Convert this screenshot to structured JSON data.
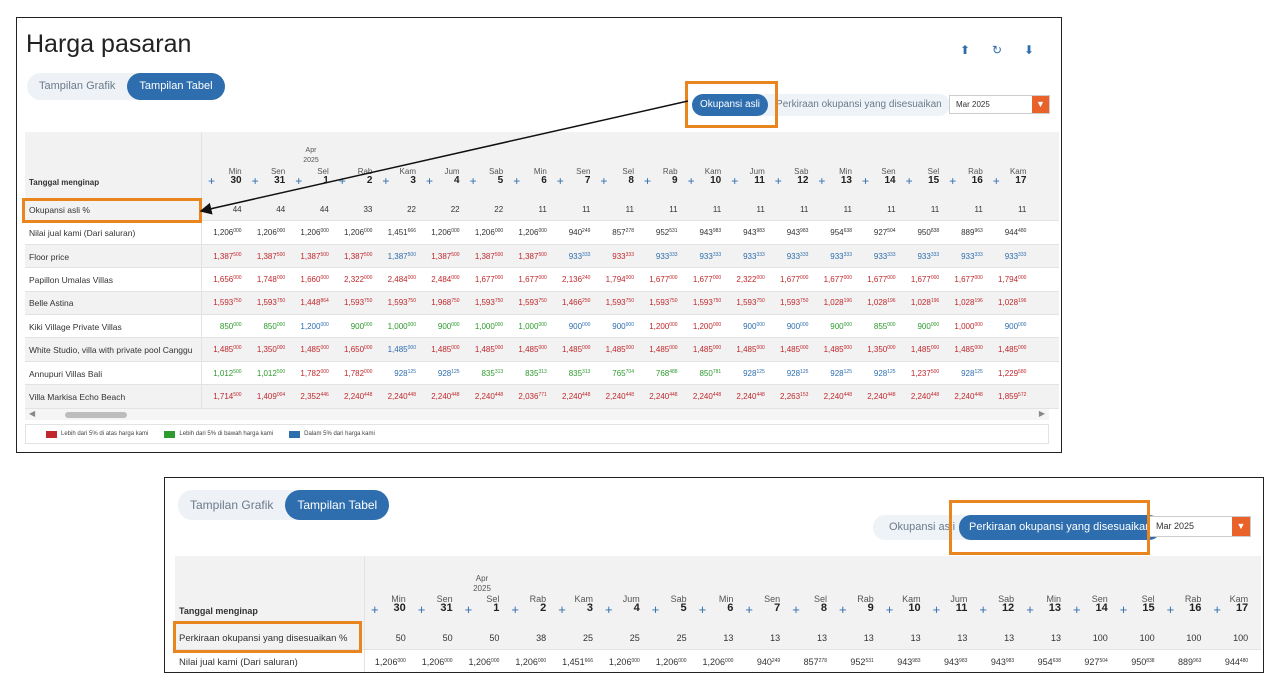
{
  "panel1": {
    "title": "Harga pasaran",
    "view_toggle": [
      "Tampilan Grafik",
      "Tampilan Tabel"
    ],
    "header_icons": [
      "upload-icon",
      "refresh-icon",
      "download-icon"
    ],
    "occupancy_options": [
      "Okupansi asli",
      "Perkiraan okupansi yang disesuaikan"
    ],
    "month": "Mar 2025",
    "row_header": "Tanggal menginap",
    "month_marker": [
      "Apr",
      "2025"
    ],
    "days": [
      [
        "Min",
        "30"
      ],
      [
        "Sen",
        "31"
      ],
      [
        "Sel",
        "1"
      ],
      [
        "Rab",
        "2"
      ],
      [
        "Kam",
        "3"
      ],
      [
        "Jum",
        "4"
      ],
      [
        "Sab",
        "5"
      ],
      [
        "Min",
        "6"
      ],
      [
        "Sen",
        "7"
      ],
      [
        "Sel",
        "8"
      ],
      [
        "Rab",
        "9"
      ],
      [
        "Kam",
        "10"
      ],
      [
        "Jum",
        "11"
      ],
      [
        "Sab",
        "12"
      ],
      [
        "Min",
        "13"
      ],
      [
        "Sen",
        "14"
      ],
      [
        "Sel",
        "15"
      ],
      [
        "Rab",
        "16"
      ],
      [
        "Kam",
        "17"
      ]
    ],
    "rows": [
      {
        "label": "Okupansi asli %",
        "shaded": true,
        "cells": [
          [
            "44",
            "",
            "k"
          ],
          [
            "44",
            "",
            "k"
          ],
          [
            "44",
            "",
            "k"
          ],
          [
            "33",
            "",
            "k"
          ],
          [
            "22",
            "",
            "k"
          ],
          [
            "22",
            "",
            "k"
          ],
          [
            "22",
            "",
            "k"
          ],
          [
            "11",
            "",
            "k"
          ],
          [
            "11",
            "",
            "k"
          ],
          [
            "11",
            "",
            "k"
          ],
          [
            "11",
            "",
            "k"
          ],
          [
            "11",
            "",
            "k"
          ],
          [
            "11",
            "",
            "k"
          ],
          [
            "11",
            "",
            "k"
          ],
          [
            "11",
            "",
            "k"
          ],
          [
            "11",
            "",
            "k"
          ],
          [
            "11",
            "",
            "k"
          ],
          [
            "11",
            "",
            "k"
          ],
          [
            "11",
            "",
            "k"
          ]
        ]
      },
      {
        "label": "Nilai jual kami (Dari saluran)",
        "shaded": false,
        "cells": [
          [
            "1,206",
            "000",
            "k"
          ],
          [
            "1,206",
            "000",
            "k"
          ],
          [
            "1,206",
            "000",
            "k"
          ],
          [
            "1,206",
            "000",
            "k"
          ],
          [
            "1,451",
            "666",
            "k"
          ],
          [
            "1,206",
            "000",
            "k"
          ],
          [
            "1,206",
            "000",
            "k"
          ],
          [
            "1,206",
            "000",
            "k"
          ],
          [
            "940",
            "249",
            "k"
          ],
          [
            "857",
            "278",
            "k"
          ],
          [
            "952",
            "531",
            "k"
          ],
          [
            "943",
            "983",
            "k"
          ],
          [
            "943",
            "983",
            "k"
          ],
          [
            "943",
            "983",
            "k"
          ],
          [
            "954",
            "638",
            "k"
          ],
          [
            "927",
            "504",
            "k"
          ],
          [
            "950",
            "838",
            "k"
          ],
          [
            "889",
            "963",
            "k"
          ],
          [
            "944",
            "480",
            "k"
          ]
        ]
      },
      {
        "label": "Floor price",
        "shaded": true,
        "cells": [
          [
            "1,387",
            "500",
            "r"
          ],
          [
            "1,387",
            "500",
            "r"
          ],
          [
            "1,387",
            "500",
            "r"
          ],
          [
            "1,387",
            "500",
            "r"
          ],
          [
            "1,387",
            "500",
            "b"
          ],
          [
            "1,387",
            "500",
            "r"
          ],
          [
            "1,387",
            "500",
            "r"
          ],
          [
            "1,387",
            "500",
            "r"
          ],
          [
            "933",
            "333",
            "b"
          ],
          [
            "933",
            "333",
            "r"
          ],
          [
            "933",
            "333",
            "b"
          ],
          [
            "933",
            "333",
            "b"
          ],
          [
            "933",
            "333",
            "b"
          ],
          [
            "933",
            "333",
            "b"
          ],
          [
            "933",
            "333",
            "b"
          ],
          [
            "933",
            "333",
            "b"
          ],
          [
            "933",
            "333",
            "b"
          ],
          [
            "933",
            "333",
            "b"
          ],
          [
            "933",
            "333",
            "b"
          ]
        ]
      },
      {
        "label": "Papillon Umalas Villas",
        "shaded": false,
        "cells": [
          [
            "1,656",
            "000",
            "r"
          ],
          [
            "1,748",
            "000",
            "r"
          ],
          [
            "1,660",
            "000",
            "r"
          ],
          [
            "2,322",
            "000",
            "r"
          ],
          [
            "2,484",
            "000",
            "r"
          ],
          [
            "2,484",
            "000",
            "r"
          ],
          [
            "1,677",
            "000",
            "r"
          ],
          [
            "1,677",
            "000",
            "r"
          ],
          [
            "2,136",
            "240",
            "r"
          ],
          [
            "1,794",
            "000",
            "r"
          ],
          [
            "1,677",
            "000",
            "r"
          ],
          [
            "1,677",
            "000",
            "r"
          ],
          [
            "2,322",
            "000",
            "r"
          ],
          [
            "1,677",
            "000",
            "r"
          ],
          [
            "1,677",
            "000",
            "r"
          ],
          [
            "1,677",
            "000",
            "r"
          ],
          [
            "1,677",
            "000",
            "r"
          ],
          [
            "1,677",
            "000",
            "r"
          ],
          [
            "1,794",
            "000",
            "r"
          ]
        ]
      },
      {
        "label": "Belle Astina",
        "shaded": true,
        "cells": [
          [
            "1,593",
            "750",
            "r"
          ],
          [
            "1,593",
            "750",
            "r"
          ],
          [
            "1,448",
            "864",
            "r"
          ],
          [
            "1,593",
            "750",
            "r"
          ],
          [
            "1,593",
            "750",
            "r"
          ],
          [
            "1,968",
            "750",
            "r"
          ],
          [
            "1,593",
            "750",
            "r"
          ],
          [
            "1,593",
            "750",
            "r"
          ],
          [
            "1,466",
            "250",
            "r"
          ],
          [
            "1,593",
            "750",
            "r"
          ],
          [
            "1,593",
            "750",
            "r"
          ],
          [
            "1,593",
            "750",
            "r"
          ],
          [
            "1,593",
            "750",
            "r"
          ],
          [
            "1,593",
            "750",
            "r"
          ],
          [
            "1,028",
            "196",
            "r"
          ],
          [
            "1,028",
            "196",
            "r"
          ],
          [
            "1,028",
            "196",
            "r"
          ],
          [
            "1,028",
            "196",
            "r"
          ],
          [
            "1,028",
            "196",
            "r"
          ]
        ]
      },
      {
        "label": "Kiki Village Private Villas",
        "shaded": false,
        "cells": [
          [
            "850",
            "000",
            "g"
          ],
          [
            "850",
            "000",
            "g"
          ],
          [
            "1,200",
            "000",
            "b"
          ],
          [
            "900",
            "000",
            "g"
          ],
          [
            "1,000",
            "000",
            "g"
          ],
          [
            "900",
            "000",
            "g"
          ],
          [
            "1,000",
            "000",
            "g"
          ],
          [
            "1,000",
            "000",
            "g"
          ],
          [
            "900",
            "000",
            "b"
          ],
          [
            "900",
            "000",
            "b"
          ],
          [
            "1,200",
            "000",
            "r"
          ],
          [
            "1,200",
            "000",
            "r"
          ],
          [
            "900",
            "000",
            "b"
          ],
          [
            "900",
            "000",
            "b"
          ],
          [
            "900",
            "000",
            "g"
          ],
          [
            "855",
            "000",
            "g"
          ],
          [
            "900",
            "000",
            "g"
          ],
          [
            "1,000",
            "000",
            "r"
          ],
          [
            "900",
            "000",
            "b"
          ]
        ]
      },
      {
        "label": "White Studio, villa with private pool Canggu",
        "shaded": true,
        "cells": [
          [
            "1,485",
            "000",
            "r"
          ],
          [
            "1,350",
            "000",
            "r"
          ],
          [
            "1,485",
            "000",
            "r"
          ],
          [
            "1,650",
            "000",
            "r"
          ],
          [
            "1,485",
            "000",
            "b"
          ],
          [
            "1,485",
            "000",
            "r"
          ],
          [
            "1,485",
            "000",
            "r"
          ],
          [
            "1,485",
            "000",
            "r"
          ],
          [
            "1,485",
            "000",
            "r"
          ],
          [
            "1,485",
            "000",
            "r"
          ],
          [
            "1,485",
            "000",
            "r"
          ],
          [
            "1,485",
            "000",
            "r"
          ],
          [
            "1,485",
            "000",
            "r"
          ],
          [
            "1,485",
            "000",
            "r"
          ],
          [
            "1,485",
            "000",
            "r"
          ],
          [
            "1,350",
            "000",
            "r"
          ],
          [
            "1,485",
            "000",
            "r"
          ],
          [
            "1,485",
            "000",
            "r"
          ],
          [
            "1,485",
            "000",
            "r"
          ]
        ]
      },
      {
        "label": "Annupuri Villas Bali",
        "shaded": false,
        "cells": [
          [
            "1,012",
            "500",
            "g"
          ],
          [
            "1,012",
            "500",
            "g"
          ],
          [
            "1,782",
            "000",
            "r"
          ],
          [
            "1,782",
            "000",
            "r"
          ],
          [
            "928",
            "125",
            "b"
          ],
          [
            "928",
            "125",
            "b"
          ],
          [
            "835",
            "313",
            "g"
          ],
          [
            "835",
            "313",
            "g"
          ],
          [
            "835",
            "313",
            "g"
          ],
          [
            "765",
            "704",
            "g"
          ],
          [
            "768",
            "488",
            "g"
          ],
          [
            "850",
            "781",
            "g"
          ],
          [
            "928",
            "125",
            "b"
          ],
          [
            "928",
            "125",
            "b"
          ],
          [
            "928",
            "125",
            "b"
          ],
          [
            "928",
            "125",
            "b"
          ],
          [
            "1,237",
            "500",
            "r"
          ],
          [
            "928",
            "125",
            "b"
          ],
          [
            "1,229",
            "580",
            "r"
          ]
        ]
      },
      {
        "label": "Villa Markisa Echo Beach",
        "shaded": true,
        "cells": [
          [
            "1,714",
            "500",
            "r"
          ],
          [
            "1,409",
            "004",
            "r"
          ],
          [
            "2,352",
            "446",
            "r"
          ],
          [
            "2,240",
            "448",
            "r"
          ],
          [
            "2,240",
            "448",
            "r"
          ],
          [
            "2,240",
            "448",
            "r"
          ],
          [
            "2,240",
            "448",
            "r"
          ],
          [
            "2,036",
            "771",
            "r"
          ],
          [
            "2,240",
            "448",
            "r"
          ],
          [
            "2,240",
            "448",
            "r"
          ],
          [
            "2,240",
            "448",
            "r"
          ],
          [
            "2,240",
            "448",
            "r"
          ],
          [
            "2,240",
            "448",
            "r"
          ],
          [
            "2,263",
            "153",
            "r"
          ],
          [
            "2,240",
            "448",
            "r"
          ],
          [
            "2,240",
            "448",
            "r"
          ],
          [
            "2,240",
            "448",
            "r"
          ],
          [
            "2,240",
            "448",
            "r"
          ],
          [
            "1,859",
            "572",
            "r"
          ]
        ]
      }
    ],
    "legend": [
      {
        "label": "Lebih dari 5% di atas harga kami",
        "color": "#c0282d"
      },
      {
        "label": "Lebih dari 5% di bawah harga kami",
        "color": "#2d9a2d"
      },
      {
        "label": "Dalam 5% dari harga kami",
        "color": "#2e6eae"
      }
    ]
  },
  "panel2": {
    "view_toggle": [
      "Tampilan Grafik",
      "Tampilan Tabel"
    ],
    "occupancy_options": [
      "Okupansi asli",
      "Perkiraan okupansi yang disesuaikan"
    ],
    "month": "Mar 2025",
    "row_header": "Tanggal menginap",
    "month_marker": [
      "Apr",
      "2025"
    ],
    "rows": [
      {
        "label": "Perkiraan okupansi yang disesuaikan %",
        "shaded": true,
        "cells": [
          [
            "50",
            "",
            "k"
          ],
          [
            "50",
            "",
            "k"
          ],
          [
            "50",
            "",
            "k"
          ],
          [
            "38",
            "",
            "k"
          ],
          [
            "25",
            "",
            "k"
          ],
          [
            "25",
            "",
            "k"
          ],
          [
            "25",
            "",
            "k"
          ],
          [
            "13",
            "",
            "k"
          ],
          [
            "13",
            "",
            "k"
          ],
          [
            "13",
            "",
            "k"
          ],
          [
            "13",
            "",
            "k"
          ],
          [
            "13",
            "",
            "k"
          ],
          [
            "13",
            "",
            "k"
          ],
          [
            "13",
            "",
            "k"
          ],
          [
            "13",
            "",
            "k"
          ],
          [
            "100",
            "",
            "k"
          ],
          [
            "100",
            "",
            "k"
          ],
          [
            "100",
            "",
            "k"
          ],
          [
            "100",
            "",
            "k"
          ]
        ]
      },
      {
        "label": "Nilai jual kami (Dari saluran)",
        "shaded": false,
        "cells": [
          [
            "1,206",
            "000",
            "k"
          ],
          [
            "1,206",
            "000",
            "k"
          ],
          [
            "1,206",
            "000",
            "k"
          ],
          [
            "1,206",
            "000",
            "k"
          ],
          [
            "1,451",
            "666",
            "k"
          ],
          [
            "1,206",
            "000",
            "k"
          ],
          [
            "1,206",
            "000",
            "k"
          ],
          [
            "1,206",
            "000",
            "k"
          ],
          [
            "940",
            "249",
            "k"
          ],
          [
            "857",
            "278",
            "k"
          ],
          [
            "952",
            "531",
            "k"
          ],
          [
            "943",
            "983",
            "k"
          ],
          [
            "943",
            "983",
            "k"
          ],
          [
            "943",
            "983",
            "k"
          ],
          [
            "954",
            "638",
            "k"
          ],
          [
            "927",
            "504",
            "k"
          ],
          [
            "950",
            "838",
            "k"
          ],
          [
            "889",
            "963",
            "k"
          ],
          [
            "944",
            "480",
            "k"
          ]
        ]
      }
    ]
  }
}
